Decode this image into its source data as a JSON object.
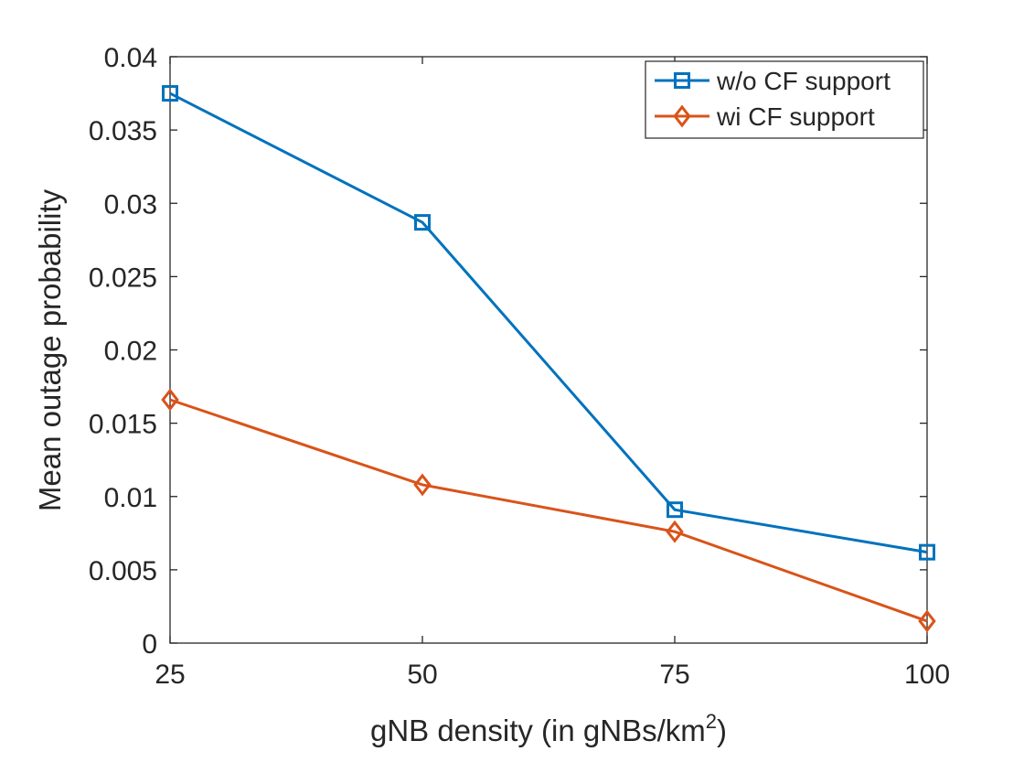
{
  "chart_data": {
    "type": "line",
    "title": "",
    "xlabel": "gNB density (in gNBs/km",
    "xlabel_superscript": "2",
    "xlabel_suffix": ")",
    "ylabel": "Mean outage probability",
    "x": [
      25,
      50,
      75,
      100
    ],
    "x_tick_labels": [
      "25",
      "50",
      "75",
      "100"
    ],
    "xlim": [
      25,
      100
    ],
    "ylim": [
      0,
      0.04
    ],
    "y_ticks": [
      0,
      0.005,
      0.01,
      0.015,
      0.02,
      0.025,
      0.03,
      0.035,
      0.04
    ],
    "y_tick_labels": [
      "0",
      "0.005",
      "0.01",
      "0.015",
      "0.02",
      "0.025",
      "0.03",
      "0.035",
      "0.04"
    ],
    "grid": false,
    "legend_position": "top-right",
    "series": [
      {
        "name": "w/o CF support",
        "values": [
          0.0375,
          0.0287,
          0.0091,
          0.0062
        ],
        "color": "#0072BD",
        "marker": "square"
      },
      {
        "name": "wi CF support",
        "values": [
          0.0166,
          0.0108,
          0.0076,
          0.0015
        ],
        "color": "#D95319",
        "marker": "diamond"
      }
    ]
  }
}
